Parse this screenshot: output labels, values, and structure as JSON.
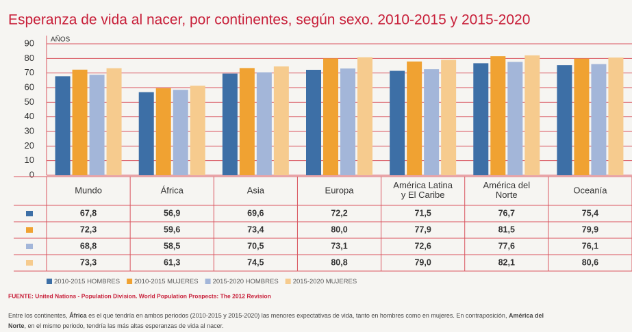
{
  "chart_data": {
    "type": "bar",
    "title": "Esperanza de vida al nacer, por continentes, según sexo. 2010-2015 y 2015-2020",
    "y_label": "AÑOS",
    "categories": [
      "Mundo",
      "África",
      "Asia",
      "Europa",
      "América Latina y El Caribe",
      "América del Norte",
      "Oceanía"
    ],
    "series": [
      {
        "name": "2010-2015 HOMBRES",
        "color": "#3d6fa6",
        "values": [
          67.8,
          56.9,
          69.6,
          72.2,
          71.5,
          76.7,
          75.4
        ],
        "value_labels": [
          "67,8",
          "56,9",
          "69,6",
          "72,2",
          "71,5",
          "76,7",
          "75,4"
        ]
      },
      {
        "name": "2010-2015 MUJERES",
        "color": "#f0a232",
        "values": [
          72.3,
          59.6,
          73.4,
          80.0,
          77.9,
          81.5,
          79.9
        ],
        "value_labels": [
          "72,3",
          "59,6",
          "73,4",
          "80,0",
          "77,9",
          "81,5",
          "79,9"
        ]
      },
      {
        "name": "2015-2020 HOMBRES",
        "color": "#a3b6d9",
        "values": [
          68.8,
          58.5,
          70.5,
          73.1,
          72.6,
          77.6,
          76.1
        ],
        "value_labels": [
          "68,8",
          "58,5",
          "70,5",
          "73,1",
          "72,6",
          "77,6",
          "76,1"
        ]
      },
      {
        "name": "2015-2020 MUJERES",
        "color": "#f6cb8e",
        "values": [
          73.3,
          61.3,
          74.5,
          80.8,
          79.0,
          82.1,
          80.6
        ],
        "value_labels": [
          "73,3",
          "61,3",
          "74,5",
          "80,8",
          "79,0",
          "82,1",
          "80,6"
        ]
      }
    ],
    "ylim": [
      0,
      90
    ],
    "yticks": [
      0,
      10,
      20,
      30,
      40,
      50,
      60,
      70,
      80,
      90
    ],
    "grid": true,
    "source": "FUENTE: United Nations - Population Division. World Population Prospects: The 2012 Revision",
    "note": [
      [
        {
          "text": "Entre los continentes, ",
          "bold": false
        },
        {
          "text": "África",
          "bold": true
        },
        {
          "text": " es el que tendría en ambos periodos (2010-2015 y 2015-2020) las menores expectativas de vida, tanto en hombres como en mujeres. En contraposición, ",
          "bold": false
        },
        {
          "text": "América del",
          "bold": true
        }
      ],
      [
        {
          "text": "Norte",
          "bold": true
        },
        {
          "text": ", en el mismo periodo, tendría las más altas esperanzas de vida al nacer.",
          "bold": false
        }
      ]
    ]
  }
}
